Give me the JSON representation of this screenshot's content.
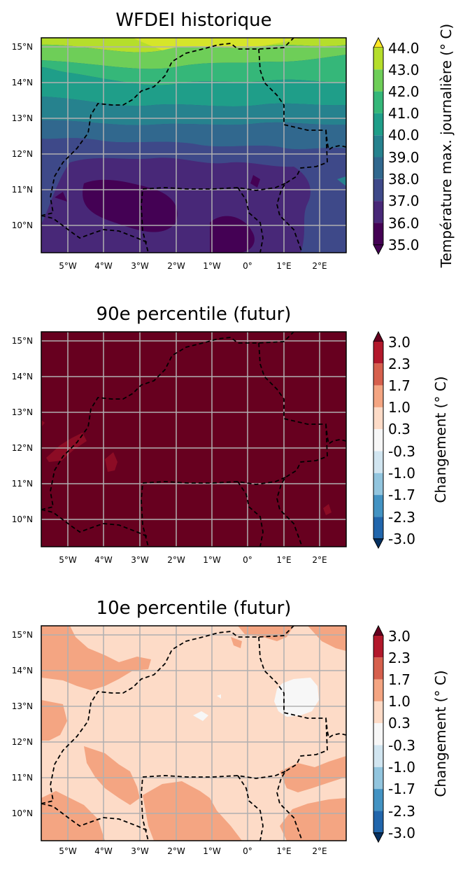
{
  "panels": [
    {
      "title": "WFDEI historique",
      "colorbar": {
        "label": "Température max. journalière ($^\\circ$C)",
        "label_display": "Température max. journalière (° C)",
        "ticks": [
          "44.0",
          "43.0",
          "42.0",
          "41.0",
          "40.0",
          "39.0",
          "38.0",
          "37.0",
          "36.0",
          "35.0"
        ],
        "colors": [
          "#fde725",
          "#b5de2b",
          "#6ece58",
          "#35b779",
          "#1f9e89",
          "#26828e",
          "#31688e",
          "#3e4989",
          "#482878",
          "#440154"
        ]
      },
      "background_color": "#3e4989"
    },
    {
      "title": "90e percentile (futur)",
      "colorbar": {
        "label_display": "Changement (° C)",
        "ticks": [
          "3.0",
          "2.3",
          "1.7",
          "1.0",
          "0.3",
          "-0.3",
          "-1.0",
          "-1.7",
          "-2.3",
          "-3.0"
        ],
        "colors": [
          "#67001f",
          "#b2182b",
          "#d6604d",
          "#f4a582",
          "#fddbc7",
          "#f7f7f7",
          "#d1e5f0",
          "#92c5de",
          "#4393c3",
          "#2166ac",
          "#053061"
        ]
      },
      "background_color": "#67001f"
    },
    {
      "title": "10e percentile (futur)",
      "colorbar": {
        "label_display": "Changement (° C)",
        "ticks": [
          "3.0",
          "2.3",
          "1.7",
          "1.0",
          "0.3",
          "-0.3",
          "-1.0",
          "-1.7",
          "-2.3",
          "-3.0"
        ],
        "colors": [
          "#67001f",
          "#b2182b",
          "#d6604d",
          "#f4a582",
          "#fddbc7",
          "#f7f7f7",
          "#d1e5f0",
          "#92c5de",
          "#4393c3",
          "#2166ac",
          "#053061"
        ]
      },
      "background_color": "#fddbc7"
    }
  ],
  "axes": {
    "lat_labels": [
      "15°N",
      "14°N",
      "13°N",
      "12°N",
      "11°N",
      "10°N"
    ],
    "lon_labels": [
      "5°W",
      "4°W",
      "3°W",
      "2°W",
      "1°W",
      "0°",
      "1°E",
      "2°E"
    ],
    "gridline_color": "#b0b0b0",
    "border_style": "dashed"
  },
  "chart_data": [
    {
      "type": "heatmap",
      "title": "WFDEI historique",
      "colorbar_label": "Température max. journalière (° C)",
      "levels": [
        35.0,
        36.0,
        37.0,
        38.0,
        39.0,
        40.0,
        41.0,
        42.0,
        43.0,
        44.0
      ],
      "x_ticks": [
        "5°W",
        "4°W",
        "3°W",
        "2°W",
        "1°W",
        "0°",
        "1°E",
        "2°E"
      ],
      "y_ticks": [
        "15°N",
        "14°N",
        "13°N",
        "12°N",
        "11°N",
        "10°N"
      ],
      "regions": [
        {
          "lat_range": [
            14.8,
            15.2
          ],
          "value_range": [
            42,
            44
          ]
        },
        {
          "lat_range": [
            14.0,
            14.8
          ],
          "value_range": [
            40,
            42
          ]
        },
        {
          "lat_range": [
            13.0,
            14.0
          ],
          "value_range": [
            38,
            40
          ]
        },
        {
          "lat_range": [
            12.0,
            13.0
          ],
          "value_range": [
            37,
            38
          ]
        },
        {
          "lat_range": [
            9.2,
            12.0
          ],
          "value_range": [
            35,
            37
          ]
        }
      ]
    },
    {
      "type": "heatmap",
      "title": "90e percentile (futur)",
      "colorbar_label": "Changement (° C)",
      "levels": [
        -3.0,
        -2.3,
        -1.7,
        -1.0,
        -0.3,
        0.3,
        1.0,
        1.7,
        2.3,
        3.0
      ],
      "x_ticks": [
        "5°W",
        "4°W",
        "3°W",
        "2°W",
        "1°W",
        "0°",
        "1°E",
        "2°E"
      ],
      "y_ticks": [
        "15°N",
        "14°N",
        "13°N",
        "12°N",
        "11°N",
        "10°N"
      ],
      "regions": [
        {
          "description": "domain-wide",
          "value_range": [
            2.3,
            3.0
          ]
        },
        {
          "description": "small patches near 4.5°W 12°N and 3.9°W 11.5°N",
          "value_range": [
            1.7,
            2.3
          ]
        }
      ]
    },
    {
      "type": "heatmap",
      "title": "10e percentile (futur)",
      "colorbar_label": "Changement (° C)",
      "levels": [
        -3.0,
        -2.3,
        -1.7,
        -1.0,
        -0.3,
        0.3,
        1.0,
        1.7,
        2.3,
        3.0
      ],
      "x_ticks": [
        "5°W",
        "4°W",
        "3°W",
        "2°W",
        "1°W",
        "0°",
        "1°E",
        "2°E"
      ],
      "y_ticks": [
        "15°N",
        "14°N",
        "13°N",
        "12°N",
        "11°N",
        "10°N"
      ],
      "regions": [
        {
          "description": "most of domain",
          "value_range": [
            0.3,
            1.0
          ]
        },
        {
          "description": "patches in north-west, south and east",
          "value_range": [
            1.0,
            1.7
          ]
        },
        {
          "description": "patch near 1.2°E 13.2°N",
          "value_range": [
            -0.3,
            0.3
          ]
        }
      ]
    }
  ]
}
